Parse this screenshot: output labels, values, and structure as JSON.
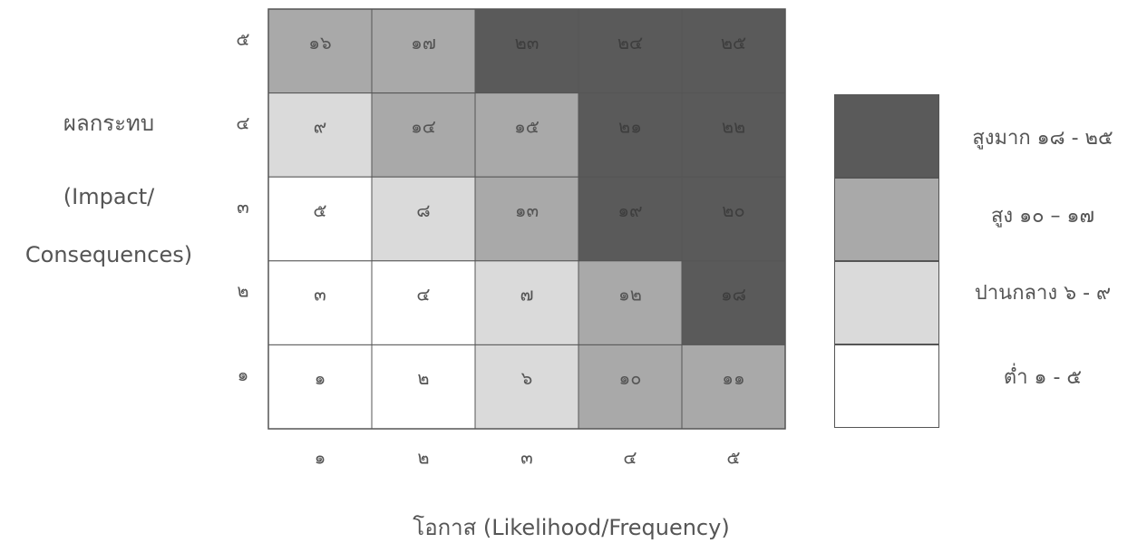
{
  "y_axis_label": [
    "ผลกระทบ",
    "(Impact/",
    "Consequences)"
  ],
  "x_axis_label": "โอกาส (Likelihood/Frequency)",
  "colors": {
    "very_high": "#5a5a5a",
    "high": "#a9a9a9",
    "medium": "#dadada",
    "low": "#ffffff",
    "border": "#555555",
    "text": "#555555"
  },
  "legend": [
    {
      "level": "very_high",
      "label": "สูงมาก ๑๘ - ๒๕"
    },
    {
      "level": "high",
      "label": "สูง ๑๐ – ๑๗"
    },
    {
      "level": "medium",
      "label": "ปานกลาง ๖ - ๙"
    },
    {
      "level": "low",
      "label": "ต่ำ ๑ - ๕"
    }
  ],
  "chart_data": {
    "type": "heatmap",
    "x_ticks": [
      "๑",
      "๒",
      "๓",
      "๔",
      "๕"
    ],
    "y_ticks": [
      "๕",
      "๔",
      "๓",
      "๒",
      "๑"
    ],
    "cells": [
      [
        {
          "v": "๑๖",
          "level": "high"
        },
        {
          "v": "๑๗",
          "level": "high"
        },
        {
          "v": "๒๓",
          "level": "very_high"
        },
        {
          "v": "๒๔",
          "level": "very_high"
        },
        {
          "v": "๒๕",
          "level": "very_high"
        }
      ],
      [
        {
          "v": "๙",
          "level": "medium"
        },
        {
          "v": "๑๔",
          "level": "high"
        },
        {
          "v": "๑๕",
          "level": "high"
        },
        {
          "v": "๒๑",
          "level": "very_high"
        },
        {
          "v": "๒๒",
          "level": "very_high"
        }
      ],
      [
        {
          "v": "๕",
          "level": "low"
        },
        {
          "v": "๘",
          "level": "medium"
        },
        {
          "v": "๑๓",
          "level": "high"
        },
        {
          "v": "๑๙",
          "level": "very_high"
        },
        {
          "v": "๒๐",
          "level": "very_high"
        }
      ],
      [
        {
          "v": "๓",
          "level": "low"
        },
        {
          "v": "๔",
          "level": "low"
        },
        {
          "v": "๗",
          "level": "medium"
        },
        {
          "v": "๑๒",
          "level": "high"
        },
        {
          "v": "๑๘",
          "level": "very_high"
        }
      ],
      [
        {
          "v": "๑",
          "level": "low"
        },
        {
          "v": "๒",
          "level": "low"
        },
        {
          "v": "๖",
          "level": "medium"
        },
        {
          "v": "๑๐",
          "level": "high"
        },
        {
          "v": "๑๑",
          "level": "high"
        }
      ]
    ]
  }
}
